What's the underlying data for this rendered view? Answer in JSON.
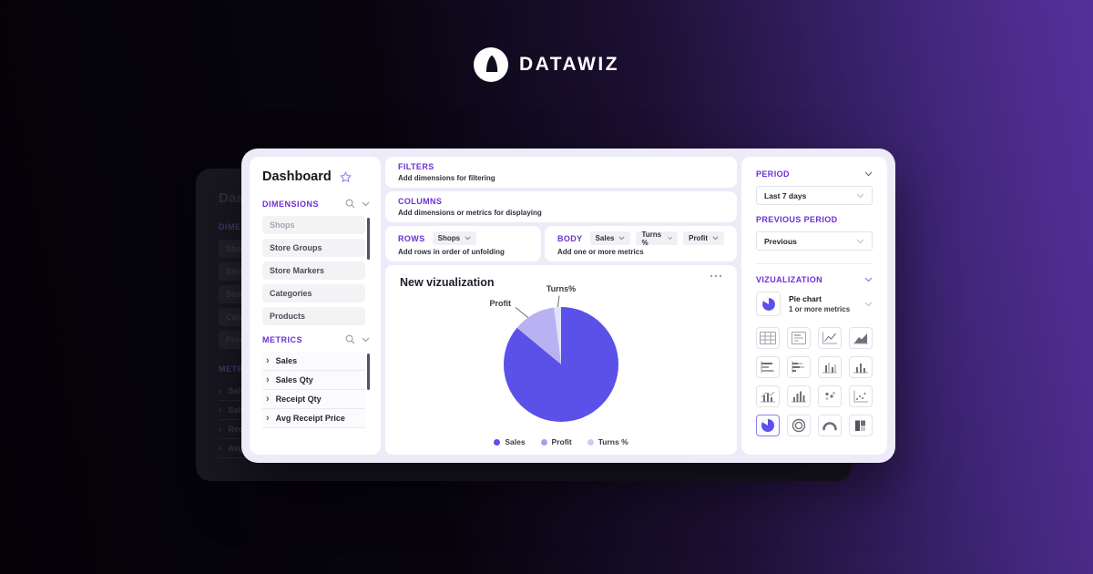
{
  "brand": {
    "name": "DATAWIZ"
  },
  "sidebar": {
    "title": "Dashboard",
    "dimensions_label": "DIMENSIONS",
    "dimension_items": [
      "Shops",
      "Store Groups",
      "Store Markers",
      "Categories",
      "Products"
    ],
    "metrics_label": "METRICS",
    "metric_items": [
      "Sales",
      "Sales Qty",
      "Receipt Qty",
      "Avg Receipt Price"
    ]
  },
  "builder": {
    "filters": {
      "label": "FILTERS",
      "hint": "Add dimensions for filtering"
    },
    "columns": {
      "label": "COLUMNS",
      "hint": "Add dimensions or metrics for displaying"
    },
    "rows": {
      "label": "ROWS",
      "hint": "Add rows in order of unfolding",
      "chips": [
        "Shops"
      ]
    },
    "body": {
      "label": "BODY",
      "hint": "Add one or more metrics",
      "chips": [
        "Sales",
        "Turns %",
        "Profit"
      ]
    }
  },
  "settings": {
    "period_label": "PERIOD",
    "period_value": "Last 7 days",
    "previous_label": "PREVIOUS PERIOD",
    "previous_value": "Previous",
    "viz_label": "VIZUALIZATION",
    "selected_viz": {
      "name": "Pie chart",
      "hint": "1 or more metrics"
    },
    "viz_types": [
      "table",
      "report",
      "line-chart",
      "area-chart",
      "bar-horizontal",
      "bar-horizontal-stacked",
      "bar-vertical-grouped",
      "bar-vertical",
      "combo-chart",
      "column-chart",
      "scatter-plot",
      "scatter-small",
      "pie-chart",
      "donut-chart",
      "gauge-chart",
      "stacked-chart"
    ],
    "selected_index": 12
  },
  "chart_data": {
    "type": "pie",
    "title": "New vizualization",
    "labels": [
      "Sales",
      "Profit",
      "Turns %"
    ],
    "values": [
      86,
      12,
      2
    ],
    "slice_colors": [
      "#5b50e8",
      "#b9b2f2",
      "#e4e1fb"
    ],
    "legend_colors": [
      "#5b50e8",
      "#a79fef",
      "#cfcbf6"
    ],
    "legend_position": "bottom",
    "callouts": [
      {
        "text": "Profit"
      },
      {
        "text": "Turns%"
      }
    ],
    "accent_color": "#5b50e8"
  }
}
